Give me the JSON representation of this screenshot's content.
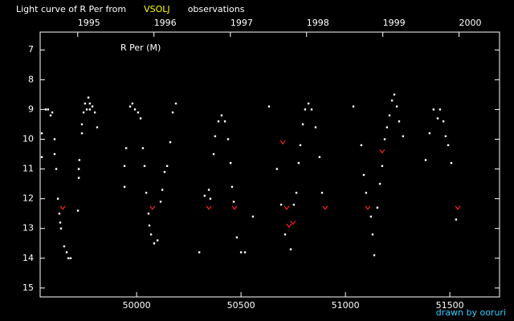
{
  "chart_data": {
    "type": "scatter",
    "title_parts": [
      {
        "text": "Light curve of R Per from",
        "color": "#ffffff"
      },
      {
        "text": "VSOLJ",
        "color": "#ffff00"
      },
      {
        "text": "observations",
        "color": "#ffffff"
      }
    ],
    "annotation": "R Per (M)",
    "credit": "drawn by ooruri",
    "xlim": [
      49538,
      51738
    ],
    "ylim": [
      6.4,
      15.3
    ],
    "y_inverted": true,
    "xticks": [
      50000,
      50500,
      51000,
      51500
    ],
    "x2ticks": [
      {
        "value": 49718,
        "label": "1995"
      },
      {
        "value": 50083,
        "label": "1996"
      },
      {
        "value": 50449,
        "label": "1997"
      },
      {
        "value": 50814,
        "label": "1998"
      },
      {
        "value": 51179,
        "label": "1999"
      },
      {
        "value": 51544,
        "label": "2000"
      }
    ],
    "yticks": [
      7,
      8,
      9,
      10,
      11,
      12,
      13,
      14,
      15
    ],
    "series": [
      {
        "color": "#ffffff",
        "marker": "dot",
        "x": [
          49546,
          49546,
          49565,
          49576,
          49588,
          49596,
          49607,
          49607,
          49615,
          49623,
          49630,
          49634,
          49638,
          49653,
          49665,
          49673,
          49684,
          49719,
          49723,
          49723,
          49726,
          49738,
          49738,
          49746,
          49753,
          49761,
          49769,
          49776,
          49776,
          49788,
          49800,
          49811,
          49942,
          49942,
          49950,
          49969,
          49980,
          49992,
          50007,
          50019,
          50030,
          50038,
          50046,
          50057,
          50061,
          50069,
          50084,
          50100,
          50115,
          50123,
          50134,
          50146,
          50161,
          50173,
          50188,
          50300,
          50326,
          50346,
          50353,
          50369,
          50376,
          50392,
          50407,
          50423,
          50438,
          50450,
          50457,
          50465,
          50480,
          50500,
          50519,
          50557,
          50634,
          50672,
          50692,
          50711,
          50738,
          50753,
          50765,
          50776,
          50784,
          50796,
          50807,
          50823,
          50838,
          50857,
          50876,
          50888,
          51038,
          51076,
          51088,
          51099,
          51122,
          51130,
          51138,
          51153,
          51165,
          51176,
          51188,
          51199,
          51211,
          51223,
          51234,
          51246,
          51257,
          51276,
          51384,
          51403,
          51422,
          51442,
          51453,
          51469,
          51480,
          51492,
          51507,
          51530
        ],
        "y": [
          9.8,
          10.6,
          9.0,
          9.0,
          9.2,
          9.1,
          10.0,
          10.5,
          11.0,
          12.0,
          12.5,
          12.8,
          13.0,
          13.6,
          13.8,
          14.0,
          14.0,
          12.4,
          11.3,
          11.0,
          10.7,
          9.8,
          9.5,
          9.1,
          8.8,
          9.0,
          8.6,
          8.8,
          9.0,
          8.9,
          9.1,
          9.6,
          11.6,
          10.9,
          10.3,
          8.9,
          8.8,
          9.0,
          9.1,
          9.3,
          10.3,
          10.9,
          11.8,
          12.5,
          12.9,
          13.2,
          13.5,
          13.4,
          12.1,
          11.7,
          11.1,
          10.9,
          10.1,
          9.1,
          8.8,
          13.8,
          11.9,
          11.7,
          12.0,
          10.5,
          9.9,
          9.4,
          9.2,
          9.4,
          10.0,
          10.8,
          11.6,
          12.1,
          13.3,
          13.8,
          13.8,
          12.6,
          8.9,
          11.0,
          12.2,
          13.2,
          13.7,
          12.2,
          11.8,
          10.8,
          10.2,
          9.5,
          9.0,
          8.8,
          9.0,
          9.6,
          10.6,
          11.8,
          8.9,
          10.2,
          11.2,
          11.8,
          12.6,
          13.2,
          13.9,
          12.3,
          11.5,
          10.9,
          10.0,
          9.6,
          9.2,
          8.7,
          8.5,
          8.9,
          9.4,
          9.9,
          10.7,
          9.8,
          9.0,
          9.3,
          9.0,
          9.4,
          9.9,
          10.2,
          10.8,
          12.7
        ]
      },
      {
        "color": "#ff2020",
        "marker": "v",
        "x": [
          49646,
          50076,
          50346,
          50469,
          50700,
          50719,
          50730,
          50749,
          50903,
          51107,
          51176,
          51538
        ],
        "y": [
          12.3,
          12.3,
          12.3,
          12.3,
          10.1,
          12.3,
          12.9,
          12.8,
          12.3,
          12.3,
          10.4,
          12.3
        ]
      }
    ]
  }
}
